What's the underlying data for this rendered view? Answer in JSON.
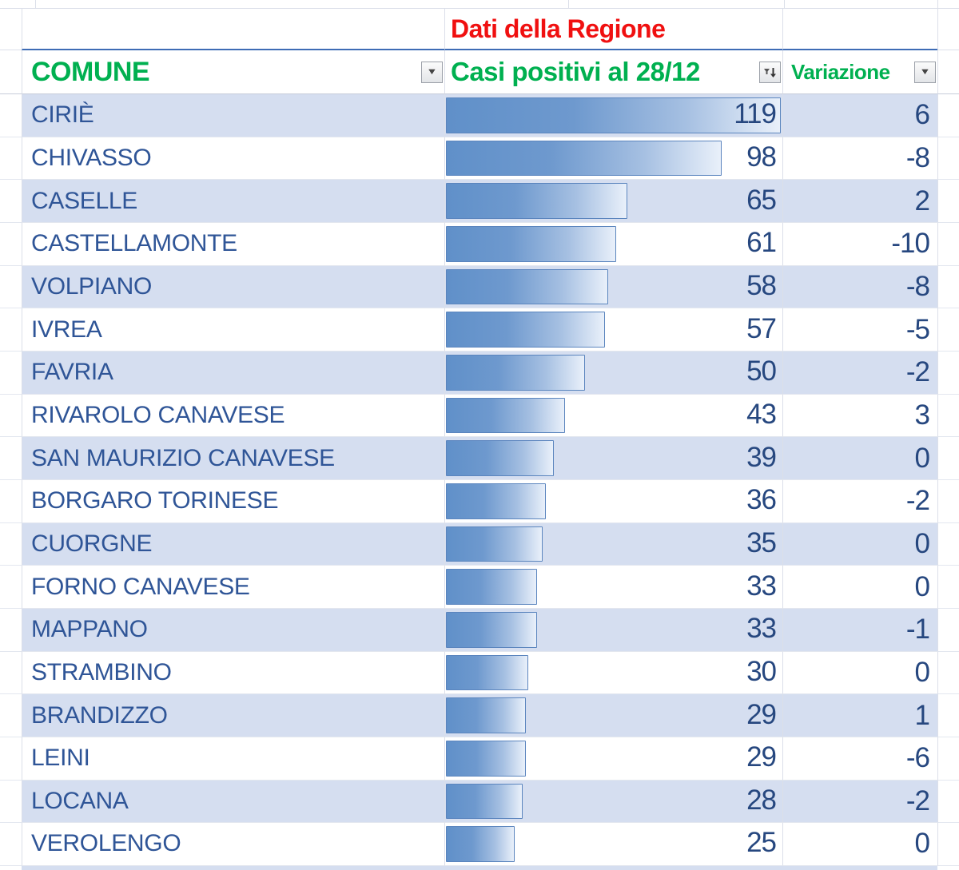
{
  "title": {
    "label": "Dati della Regione"
  },
  "header": {
    "comune": "COMUNE",
    "casi": "Casi positivi al 28/12",
    "variazione": "Variazione"
  },
  "icons": {
    "filter_dropdown": "▼",
    "sort_descending": "↓"
  },
  "colors": {
    "accent_red": "#f01010",
    "accent_green": "#00b050",
    "text_blue": "#2f5597",
    "number_blue": "#26477f",
    "band_blue": "#d5def0",
    "table_border_blue": "#3e6cb5",
    "bar_fill_start": "#6090c9",
    "bar_fill_end": "#e9f0fa",
    "bar_border": "#5b85be"
  },
  "chart_data": {
    "type": "bar",
    "title": "Casi positivi al 28/12",
    "categories": [
      "CIRIÈ",
      "CHIVASSO",
      "CASELLE",
      "CASTELLAMONTE",
      "VOLPIANO",
      "IVREA",
      "FAVRIA",
      "RIVAROLO CANAVESE",
      "SAN MAURIZIO CANAVESE",
      "BORGARO TORINESE",
      "CUORGNE",
      "FORNO CANAVESE",
      "MAPPANO",
      "STRAMBINO",
      "BRANDIZZO",
      "LEINI",
      "LOCANA",
      "VEROLENGO"
    ],
    "values": [
      119,
      98,
      65,
      61,
      58,
      57,
      50,
      43,
      39,
      36,
      35,
      33,
      33,
      30,
      29,
      29,
      28,
      25
    ],
    "xlim": [
      0,
      119
    ]
  },
  "table": {
    "max_casi": 119,
    "rows": [
      {
        "comune": "CIRIÈ",
        "casi": 119,
        "variazione": "6"
      },
      {
        "comune": "CHIVASSO",
        "casi": 98,
        "variazione": "-8"
      },
      {
        "comune": "CASELLE",
        "casi": 65,
        "variazione": "2"
      },
      {
        "comune": "CASTELLAMONTE",
        "casi": 61,
        "variazione": "-10"
      },
      {
        "comune": "VOLPIANO",
        "casi": 58,
        "variazione": "-8"
      },
      {
        "comune": "IVREA",
        "casi": 57,
        "variazione": "-5"
      },
      {
        "comune": "FAVRIA",
        "casi": 50,
        "variazione": "-2"
      },
      {
        "comune": "RIVAROLO CANAVESE",
        "casi": 43,
        "variazione": "3"
      },
      {
        "comune": "SAN MAURIZIO CANAVESE",
        "casi": 39,
        "variazione": "0"
      },
      {
        "comune": "BORGARO TORINESE",
        "casi": 36,
        "variazione": "-2"
      },
      {
        "comune": "CUORGNE",
        "casi": 35,
        "variazione": "0"
      },
      {
        "comune": "FORNO CANAVESE",
        "casi": 33,
        "variazione": "0"
      },
      {
        "comune": "MAPPANO",
        "casi": 33,
        "variazione": "-1"
      },
      {
        "comune": "STRAMBINO",
        "casi": 30,
        "variazione": "0"
      },
      {
        "comune": "BRANDIZZO",
        "casi": 29,
        "variazione": "1"
      },
      {
        "comune": "LEINI",
        "casi": 29,
        "variazione": "-6"
      },
      {
        "comune": "LOCANA",
        "casi": 28,
        "variazione": "-2"
      },
      {
        "comune": "VEROLENGO",
        "casi": 25,
        "variazione": "0"
      }
    ]
  }
}
